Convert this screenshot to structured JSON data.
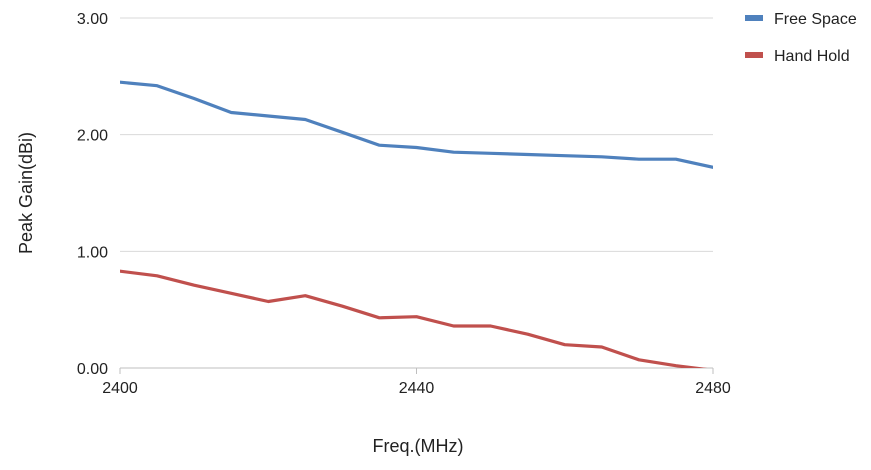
{
  "chart_data": {
    "type": "line",
    "title": "",
    "xlabel": "Freq.(MHz)",
    "ylabel": "Peak Gain(dBi)",
    "xlim": [
      2400,
      2480
    ],
    "ylim": [
      0,
      3
    ],
    "x_ticks": [
      2400,
      2440,
      2480
    ],
    "x_tick_labels": [
      "2400",
      "2440",
      "2480"
    ],
    "y_ticks": [
      0,
      1,
      2,
      3
    ],
    "y_tick_labels": [
      "0.00",
      "1.00",
      "2.00",
      "3.00"
    ],
    "grid": true,
    "legend_position": "top-right",
    "x": [
      2400,
      2405,
      2410,
      2415,
      2420,
      2425,
      2430,
      2435,
      2440,
      2445,
      2450,
      2455,
      2460,
      2465,
      2470,
      2475,
      2480
    ],
    "series": [
      {
        "name": "Free Space",
        "color": "#4f81bd",
        "values": [
          2.45,
          2.42,
          2.31,
          2.19,
          2.16,
          2.13,
          2.02,
          1.91,
          1.89,
          1.85,
          1.84,
          1.83,
          1.82,
          1.81,
          1.79,
          1.79,
          1.72
        ]
      },
      {
        "name": "Hand Hold",
        "color": "#c0504d",
        "values": [
          0.83,
          0.79,
          0.71,
          0.64,
          0.57,
          0.62,
          0.53,
          0.43,
          0.44,
          0.36,
          0.36,
          0.29,
          0.2,
          0.18,
          0.07,
          0.02,
          -0.02
        ]
      }
    ]
  }
}
